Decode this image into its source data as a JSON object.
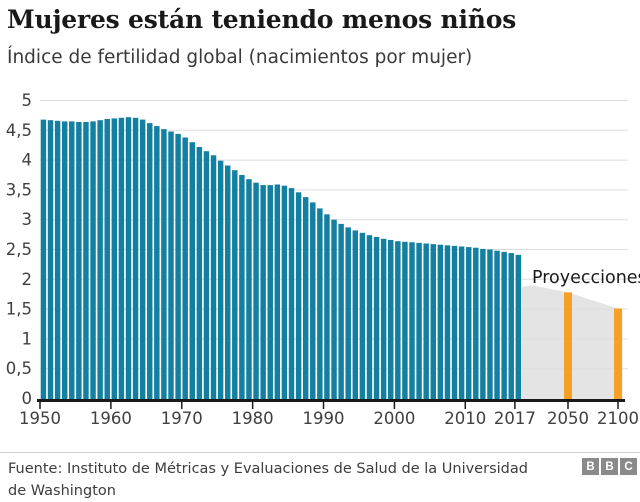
{
  "header": {
    "title": "Mujeres están teniendo menos niños",
    "subtitle": "Índice de fertilidad global (nacimientos por mujer)"
  },
  "chart_data": {
    "type": "bar",
    "title": "Mujeres están teniendo menos niños",
    "ylabel": "Índice de fertilidad global (nacimientos por mujer)",
    "ylim": [
      0,
      5
    ],
    "grid": true,
    "y_tick_values": [
      0,
      0.5,
      1,
      1.5,
      2,
      2.5,
      3,
      3.5,
      4,
      4.5,
      5
    ],
    "y_tick_labels": [
      "0",
      "0,5",
      "1",
      "1,5",
      "2",
      "2,5",
      "3",
      "3,5",
      "4",
      "4,5",
      "5"
    ],
    "x_tick_years": [
      1950,
      1960,
      1970,
      1980,
      1990,
      2000,
      2010,
      2017,
      2050,
      2100
    ],
    "x_tick_labels": [
      "1950",
      "1960",
      "1970",
      "1980",
      "1990",
      "2000",
      "2010",
      "2017",
      "2050",
      "2100"
    ],
    "historical": {
      "name": "Índice de fertilidad (nacimientos por mujer)",
      "start_year": 1950,
      "end_year": 2017,
      "values": [
        4.68,
        4.67,
        4.66,
        4.65,
        4.65,
        4.64,
        4.64,
        4.65,
        4.67,
        4.69,
        4.7,
        4.71,
        4.72,
        4.71,
        4.68,
        4.62,
        4.57,
        4.52,
        4.48,
        4.44,
        4.38,
        4.3,
        4.22,
        4.15,
        4.08,
        3.99,
        3.91,
        3.83,
        3.75,
        3.68,
        3.62,
        3.58,
        3.58,
        3.59,
        3.57,
        3.53,
        3.46,
        3.38,
        3.29,
        3.19,
        3.09,
        3.0,
        2.93,
        2.87,
        2.82,
        2.78,
        2.74,
        2.71,
        2.68,
        2.66,
        2.64,
        2.63,
        2.62,
        2.61,
        2.6,
        2.59,
        2.58,
        2.57,
        2.56,
        2.55,
        2.54,
        2.53,
        2.51,
        2.5,
        2.48,
        2.46,
        2.44,
        2.41
      ]
    },
    "projections": {
      "label": "Proyecciones",
      "bars": [
        {
          "year": 2050,
          "value": 1.78
        },
        {
          "year": 2100,
          "value": 1.51
        }
      ],
      "band": [
        [
          2020.5,
          1.87
        ],
        [
          2027,
          1.9
        ],
        [
          2050,
          1.78
        ],
        [
          2100,
          1.51
        ]
      ]
    },
    "colors": {
      "historical": "#137fa1",
      "projection": "#f6a125",
      "band": "#e4e4e4",
      "grid": "#dedede",
      "axis": "#1a1a1a",
      "tick_text": "#404040",
      "annotation_text": "#1a1a1a"
    }
  },
  "footer": {
    "source_line1": "Fuente: Instituto de Métricas y Evaluaciones de Salud de la Universidad",
    "source_line2": "de Washington",
    "logo_letters": [
      "B",
      "B",
      "C"
    ]
  }
}
